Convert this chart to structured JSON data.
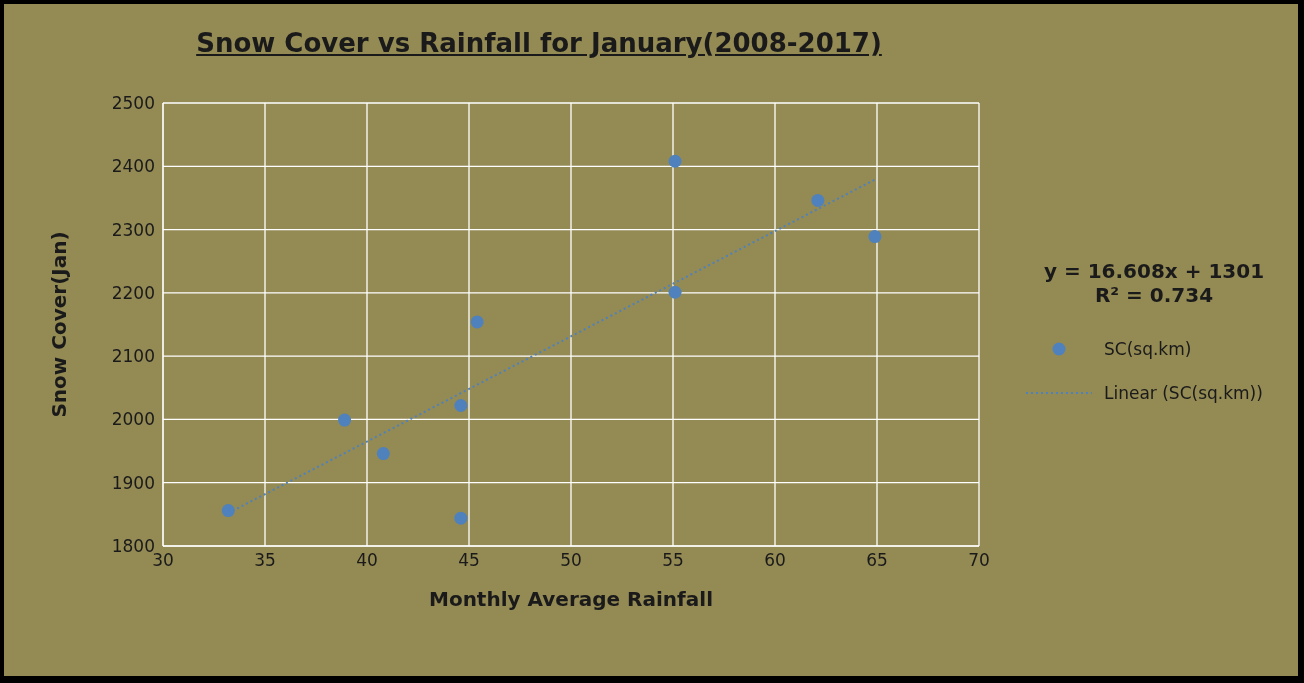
{
  "chart_data": {
    "type": "scatter",
    "title": "Snow Cover vs Rainfall for January(2008-2017)",
    "xlabel": "Monthly Average Rainfall",
    "ylabel": "Snow Cover(Jan)",
    "x": [
      33.2,
      38.9,
      40.8,
      44.6,
      44.6,
      45.4,
      55.1,
      55.1,
      62.1,
      64.9
    ],
    "series": [
      {
        "name": "SC(sq.km)",
        "color": "#4f81bd",
        "marker": "circle",
        "values": [
          1856,
          1999,
          1946,
          1844,
          2022,
          2154,
          2408,
          2201,
          2346,
          2289
        ]
      },
      {
        "name": "Linear (SC(sq.km))",
        "type": "line",
        "color": "#4f81bd",
        "line_style": "dotted",
        "marker": "none",
        "x": [
          33.2,
          64.9
        ],
        "values": [
          1852,
          2379
        ]
      }
    ],
    "xlim": [
      30,
      70
    ],
    "xticks": [
      30,
      35,
      40,
      45,
      50,
      55,
      60,
      65,
      70
    ],
    "ylim": [
      1800,
      2500
    ],
    "yticks": [
      1800,
      1900,
      2000,
      2100,
      2200,
      2300,
      2400,
      2500
    ],
    "grid": true,
    "legend": "right",
    "annotations": [
      "y = 16.608x + 1301",
      "R² = 0.734"
    ]
  }
}
